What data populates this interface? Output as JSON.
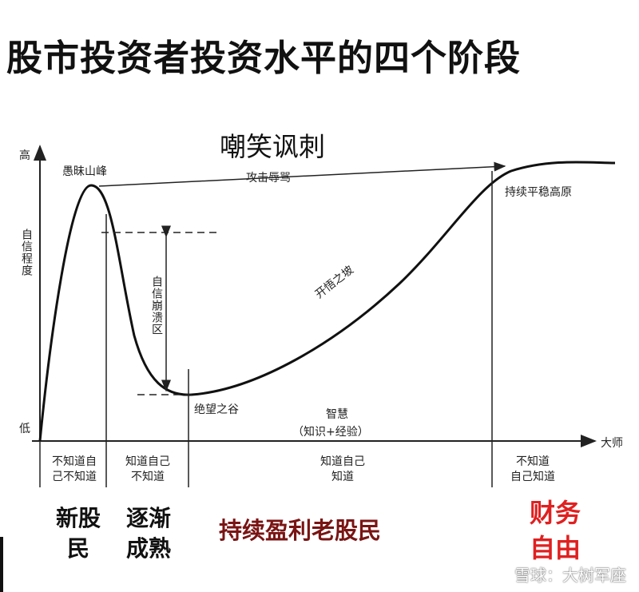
{
  "title": "股市投资者投资水平的四个阶段",
  "mock_label": "嘲笑讽刺",
  "axes": {
    "y_title": "自信程度",
    "y_high": "高",
    "y_low": "低",
    "x_end": "大师"
  },
  "annotations": {
    "peak": "愚昧山峰",
    "arrow": "攻击辱骂",
    "plateau": "持续平稳高原",
    "collapse": "自信崩溃区",
    "slope": "开悟之坡",
    "valley": "绝望之谷",
    "wisdom": "智慧",
    "wisdom_sub": "（知识+经验）"
  },
  "phases": [
    "不知道自\n己不知道",
    "知道自己\n不知道",
    "知道自己\n知道",
    "不知道\n自己知道"
  ],
  "segments": {
    "new": "新股\n民",
    "grow": "逐渐\n成熟",
    "profit": "持续盈利老股民",
    "free": "财务\n自由"
  },
  "watermark": "雪球：大树军座",
  "colors": {
    "profit": "#7a1414",
    "free": "#e02020"
  }
}
